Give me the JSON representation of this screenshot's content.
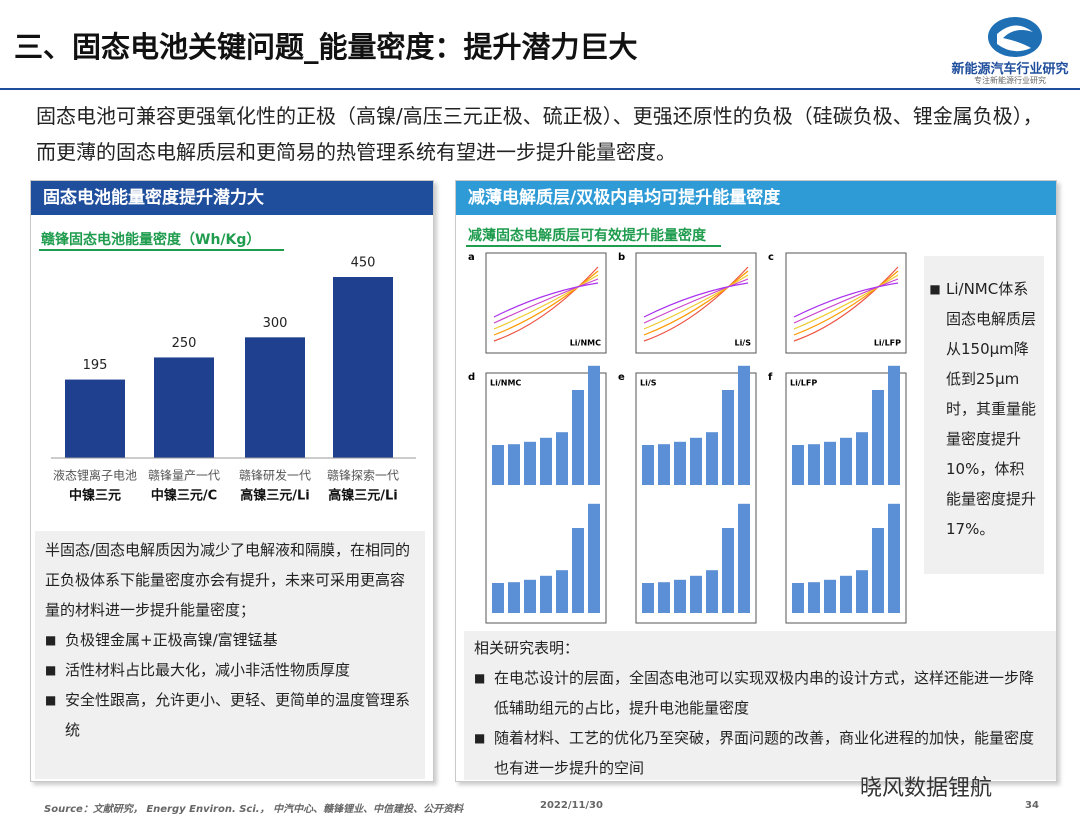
{
  "header": {
    "title": "三、固态电池关键问题_能量密度：提升潜力巨大",
    "logo_name": "新能源汽车行业研究",
    "logo_sub": "专注新能源行业研究"
  },
  "intro": "固态电池可兼容更强氧化性的正极（高镍/高压三元正极、硫正极）、更强还原性的负极（硅碳负极、锂金属负极），而更薄的固态电解质层和更简易的热管理系统有望进一步提升能量密度。",
  "left_panel": {
    "title": "固态电池能量密度提升潜力大",
    "chart": {
      "type": "bar",
      "title": "赣锋固态电池能量密度（Wh/Kg）",
      "categories": [
        "液态锂离子电池",
        "赣锋量产一代",
        "赣锋研发一代",
        "赣锋探索一代"
      ],
      "subcategories": [
        "中镍三元",
        "中镍三元/C",
        "高镍三元/Li",
        "高镍三元/Li"
      ],
      "values": [
        195,
        250,
        300,
        450
      ],
      "color": "#1f3f8f"
    },
    "paragraph": "半固态/固态电解质因为减少了电解液和隔膜，在相同的正负极体系下能量密度亦会有提升，未来可采用更高容量的材料进一步提升能量密度；",
    "bullets": [
      "负极锂金属+正极高镍/富锂锰基",
      "活性材料占比最大化，减小非活性物质厚度",
      "安全性跟高，允许更小、更轻、更简单的温度管理系统"
    ]
  },
  "right_panel": {
    "title": "减薄电解质层/双极内串均可提升能量密度",
    "subtitle": "减薄固态电解质层可有效提升能量密度",
    "figure": {
      "panels": [
        {
          "letter": "a",
          "label": "Li/NMC"
        },
        {
          "letter": "b",
          "label": "Li/S"
        },
        {
          "letter": "c",
          "label": "Li/LFP"
        },
        {
          "letter": "d",
          "label": "Li/NMC"
        },
        {
          "letter": "e",
          "label": "Li/S"
        },
        {
          "letter": "f",
          "label": "Li/LFP"
        }
      ]
    },
    "side_note": "Li/NMC体系固态电解质层从150μm降低到25μm时，其重量能量密度提升10%，体积能量密度提升17%。",
    "research_heading": "相关研究表明：",
    "research_bullets": [
      "在电芯设计的层面，全固态电池可以实现双极内串的设计方式，这样还能进一步降低辅助组元的占比，提升电池能量密度",
      "随着材料、工艺的优化乃至突破，界面问题的改善，商业化进程的加快，能量密度也有进一步提升的空间"
    ]
  },
  "footer": {
    "source": "Source：文献研究， Energy Environ. Sci.， 中汽中心、赣锋锂业、中信建投、公开资料",
    "date": "2022/11/30",
    "page": "34",
    "watermark": "晓风数据锂航"
  }
}
